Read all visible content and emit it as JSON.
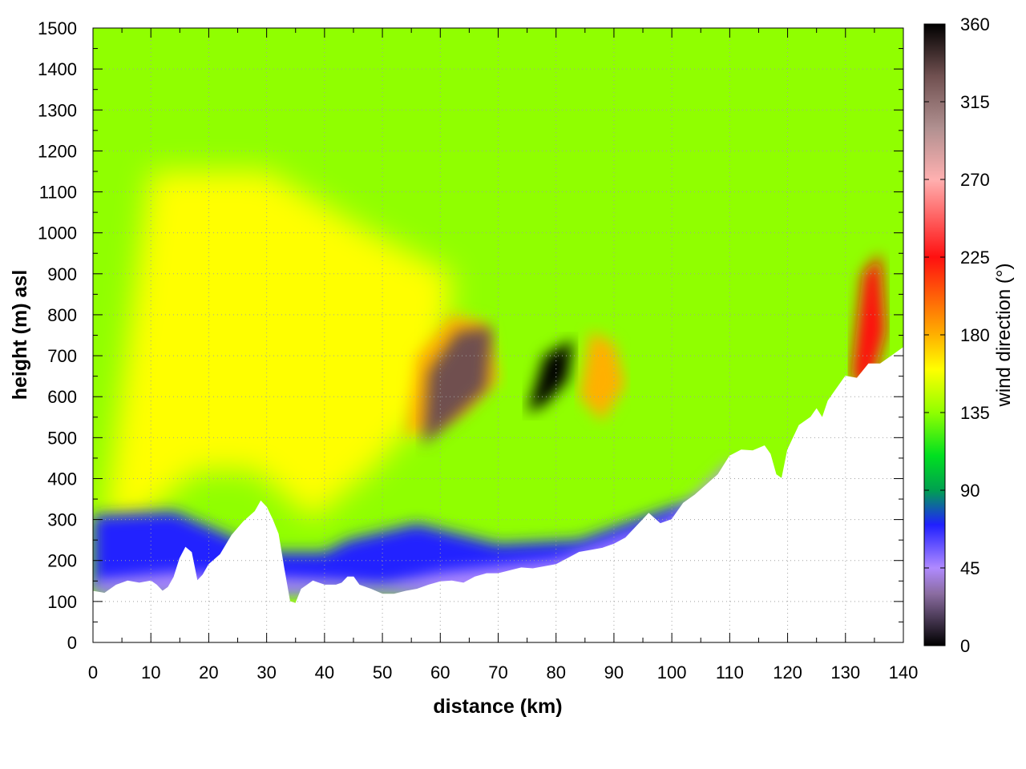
{
  "chart_data": {
    "type": "heatmap",
    "title": "",
    "xlabel": "distance (km)",
    "ylabel": "height (m) asl",
    "xlim": [
      0,
      140
    ],
    "ylim": [
      0,
      1500
    ],
    "x_ticks": [
      0,
      10,
      20,
      30,
      40,
      50,
      60,
      70,
      80,
      90,
      100,
      110,
      120,
      130,
      140
    ],
    "y_ticks": [
      0,
      100,
      200,
      300,
      400,
      500,
      600,
      700,
      800,
      900,
      1000,
      1100,
      1200,
      1300,
      1400,
      1500
    ],
    "grid": true,
    "colorbar": {
      "label": "wind direction (°)",
      "range": [
        0,
        360
      ],
      "ticks": [
        0,
        45,
        90,
        135,
        180,
        225,
        270,
        315,
        360
      ],
      "colormap": [
        {
          "value": 0,
          "color": "#000000"
        },
        {
          "value": 30,
          "color": "#8a6ca0"
        },
        {
          "value": 45,
          "color": "#b08aff"
        },
        {
          "value": 70,
          "color": "#2020ff"
        },
        {
          "value": 90,
          "color": "#00a050"
        },
        {
          "value": 110,
          "color": "#00e020"
        },
        {
          "value": 135,
          "color": "#90ff00"
        },
        {
          "value": 160,
          "color": "#ffff00"
        },
        {
          "value": 180,
          "color": "#ffb000"
        },
        {
          "value": 225,
          "color": "#ff1010"
        },
        {
          "value": 270,
          "color": "#ffb0b0"
        },
        {
          "value": 300,
          "color": "#b09090"
        },
        {
          "value": 330,
          "color": "#705050"
        },
        {
          "value": 360,
          "color": "#000000"
        }
      ]
    },
    "terrain": [
      [
        0,
        125
      ],
      [
        2,
        120
      ],
      [
        4,
        140
      ],
      [
        6,
        150
      ],
      [
        8,
        145
      ],
      [
        10,
        150
      ],
      [
        11,
        140
      ],
      [
        12,
        125
      ],
      [
        13,
        135
      ],
      [
        14,
        160
      ],
      [
        15,
        205
      ],
      [
        16,
        232
      ],
      [
        17,
        220
      ],
      [
        18,
        150
      ],
      [
        19,
        165
      ],
      [
        20,
        190
      ],
      [
        22,
        215
      ],
      [
        24,
        262
      ],
      [
        26,
        295
      ],
      [
        28,
        320
      ],
      [
        29,
        345
      ],
      [
        30,
        330
      ],
      [
        31,
        300
      ],
      [
        32,
        265
      ],
      [
        33,
        180
      ],
      [
        34,
        100
      ],
      [
        35,
        95
      ],
      [
        36,
        130
      ],
      [
        38,
        150
      ],
      [
        40,
        140
      ],
      [
        42,
        140
      ],
      [
        43,
        145
      ],
      [
        44,
        160
      ],
      [
        45,
        160
      ],
      [
        46,
        140
      ],
      [
        48,
        130
      ],
      [
        50,
        118
      ],
      [
        52,
        118
      ],
      [
        54,
        125
      ],
      [
        56,
        130
      ],
      [
        58,
        140
      ],
      [
        60,
        148
      ],
      [
        62,
        150
      ],
      [
        64,
        145
      ],
      [
        66,
        160
      ],
      [
        68,
        168
      ],
      [
        70,
        168
      ],
      [
        72,
        175
      ],
      [
        74,
        182
      ],
      [
        76,
        180
      ],
      [
        78,
        185
      ],
      [
        80,
        190
      ],
      [
        82,
        205
      ],
      [
        84,
        220
      ],
      [
        86,
        225
      ],
      [
        88,
        230
      ],
      [
        90,
        240
      ],
      [
        92,
        255
      ],
      [
        94,
        285
      ],
      [
        96,
        315
      ],
      [
        98,
        290
      ],
      [
        100,
        300
      ],
      [
        102,
        340
      ],
      [
        104,
        360
      ],
      [
        106,
        385
      ],
      [
        108,
        410
      ],
      [
        110,
        455
      ],
      [
        112,
        470
      ],
      [
        114,
        468
      ],
      [
        116,
        480
      ],
      [
        117,
        460
      ],
      [
        118,
        410
      ],
      [
        119,
        400
      ],
      [
        120,
        470
      ],
      [
        122,
        530
      ],
      [
        124,
        550
      ],
      [
        125,
        570
      ],
      [
        126,
        548
      ],
      [
        127,
        590
      ],
      [
        128,
        610
      ],
      [
        130,
        650
      ],
      [
        132,
        645
      ],
      [
        134,
        680
      ],
      [
        136,
        680
      ],
      [
        138,
        700
      ],
      [
        140,
        720
      ]
    ],
    "regions": [
      {
        "description": "broad green-yellow field aloft",
        "direction_deg": 130
      },
      {
        "description": "yellow core 0-60 km, 300-1100 m",
        "direction_deg": 150
      },
      {
        "description": "blue low-level band above terrain",
        "direction_deg": 70
      },
      {
        "description": "purple near-surface layer",
        "direction_deg": 40
      },
      {
        "description": "orange-red patch near 55-68 km, 500-800 m",
        "direction_deg": 200
      },
      {
        "description": "dark speckled patch near 56-70 km",
        "direction_deg": 330
      },
      {
        "description": "dark patch near 75-83 km, 600-750 m",
        "direction_deg": 10
      },
      {
        "description": "orange patch near 85-90 km, 550-750 m",
        "direction_deg": 170
      },
      {
        "description": "red-pink patch near 131-136 km, 650-950 m",
        "direction_deg": 240
      }
    ]
  }
}
